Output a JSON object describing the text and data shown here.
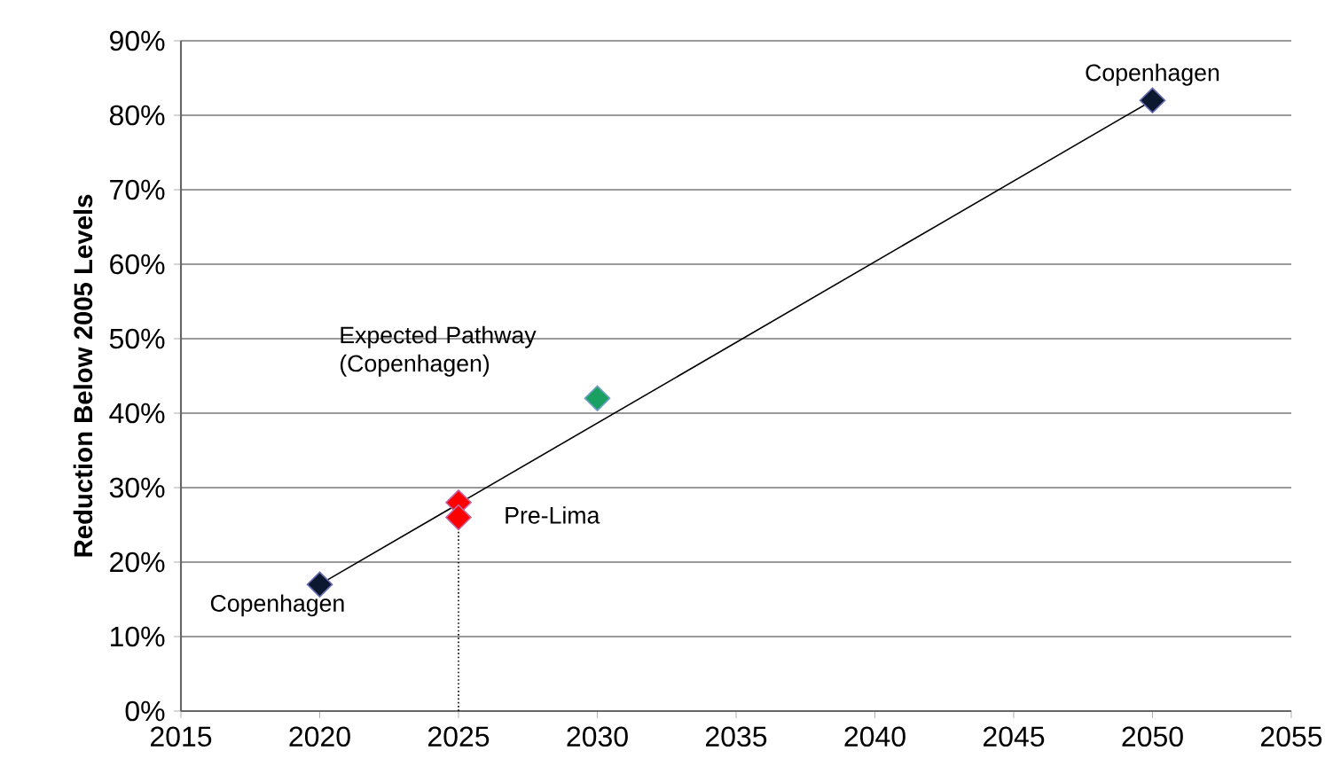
{
  "chart_data": {
    "type": "scatter",
    "ylabel": "Reduction Below 2005 Levels",
    "xlim": [
      2015,
      2055
    ],
    "xticks": [
      2015,
      2020,
      2025,
      2030,
      2035,
      2040,
      2045,
      2050,
      2055
    ],
    "ylim": [
      0,
      90
    ],
    "yticks": [
      {
        "value": 0,
        "label": "0%"
      },
      {
        "value": 10,
        "label": "10%"
      },
      {
        "value": 20,
        "label": "20%"
      },
      {
        "value": 30,
        "label": "30%"
      },
      {
        "value": 40,
        "label": "40%"
      },
      {
        "value": 50,
        "label": "50%"
      },
      {
        "value": 60,
        "label": "60%"
      },
      {
        "value": 70,
        "label": "70%"
      },
      {
        "value": 80,
        "label": "80%"
      },
      {
        "value": 90,
        "label": "90%"
      }
    ],
    "grid": "y",
    "series": [
      {
        "type": "line",
        "x": [
          2020,
          2050
        ],
        "values": [
          17,
          82
        ],
        "color": "#000000",
        "marker": "none",
        "line_style": "solid"
      },
      {
        "type": "line",
        "x": [
          2025,
          2025
        ],
        "values": [
          0,
          26
        ],
        "color": "#000000",
        "marker": "none",
        "line_style": "dotted"
      },
      {
        "x": [
          2020,
          2050
        ],
        "values": [
          17,
          82
        ],
        "color": "#0b1830",
        "marker": "diamond"
      },
      {
        "x": [
          2030
        ],
        "values": [
          42
        ],
        "color": "#1aa060",
        "marker": "diamond"
      },
      {
        "x": [
          2025,
          2025
        ],
        "values": [
          28,
          26
        ],
        "color": "#ff0000",
        "marker": "diamond"
      }
    ],
    "annotations": [
      {
        "text": "Copenhagen",
        "x": 2020,
        "y": 17
      },
      {
        "text": "Copenhagen",
        "x": 2050,
        "y": 82
      },
      {
        "text": "Expected Pathway (Copenhagen)",
        "x": 2030,
        "y": 42
      },
      {
        "text": "Pre-Lima",
        "x": 2025,
        "y": 26
      }
    ]
  }
}
